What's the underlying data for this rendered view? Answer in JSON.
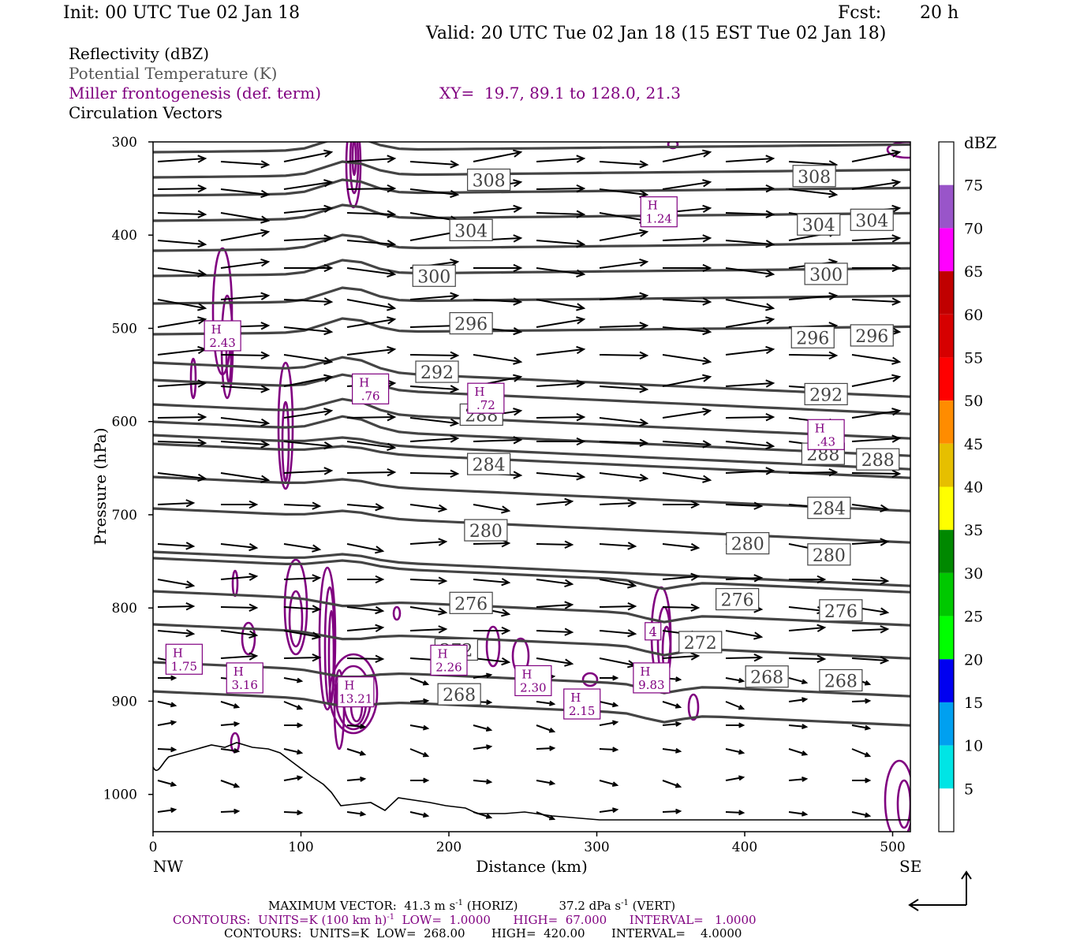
{
  "header": {
    "init": "Init: 00 UTC Tue 02 Jan 18",
    "fcst_label": "Fcst:",
    "fcst_value": "20 h",
    "valid": "Valid: 20 UTC Tue 02 Jan 18 (15 EST Tue 02 Jan 18)"
  },
  "legend": {
    "reflectivity": "Reflectivity (dBZ)",
    "theta": "Potential Temperature (K)",
    "frontogenesis": "Miller frontogenesis (def. term)",
    "xy": "XY=  19.7, 89.1 to 128.0, 21.3",
    "vectors": "Circulation Vectors"
  },
  "colors": {
    "theta": "#444444",
    "frontogenesis": "#800080",
    "terrain": "#000000",
    "vectors": "#000000"
  },
  "chart_data": {
    "type": "line",
    "xlabel": "Distance (km)",
    "ylabel": "Pressure (hPa)",
    "xlim": [
      0,
      512
    ],
    "ylim": [
      1040,
      300
    ],
    "y_scale": "linear",
    "x_ticks": [
      0,
      100,
      200,
      300,
      400,
      500
    ],
    "y_ticks": [
      300,
      400,
      500,
      600,
      700,
      800,
      900,
      1000
    ],
    "x_end_labels": {
      "left": "NW",
      "right": "SE"
    },
    "theta_labels": [
      {
        "label": "308",
        "x": 227,
        "p": 341
      },
      {
        "label": "308",
        "x": 447,
        "p": 337
      },
      {
        "label": "304",
        "x": 215,
        "p": 395
      },
      {
        "label": "304",
        "x": 450,
        "p": 389
      },
      {
        "label": "304",
        "x": 486,
        "p": 384
      },
      {
        "label": "300",
        "x": 190,
        "p": 444
      },
      {
        "label": "300",
        "x": 455,
        "p": 442
      },
      {
        "label": "296",
        "x": 215,
        "p": 495
      },
      {
        "label": "296",
        "x": 446,
        "p": 510
      },
      {
        "label": "296",
        "x": 486,
        "p": 508
      },
      {
        "label": "292",
        "x": 192,
        "p": 547
      },
      {
        "label": "292",
        "x": 455,
        "p": 571
      },
      {
        "label": "288",
        "x": 222,
        "p": 593
      },
      {
        "label": "288",
        "x": 453,
        "p": 635
      },
      {
        "label": "288",
        "x": 490,
        "p": 641
      },
      {
        "label": "284",
        "x": 227,
        "p": 646
      },
      {
        "label": "284",
        "x": 457,
        "p": 693
      },
      {
        "label": "280",
        "x": 225,
        "p": 717
      },
      {
        "label": "280",
        "x": 402,
        "p": 731
      },
      {
        "label": "280",
        "x": 457,
        "p": 743
      },
      {
        "label": "276",
        "x": 215,
        "p": 795
      },
      {
        "label": "276",
        "x": 395,
        "p": 791
      },
      {
        "label": "276",
        "x": 465,
        "p": 803
      },
      {
        "label": "272",
        "x": 205,
        "p": 845
      },
      {
        "label": "272",
        "x": 370,
        "p": 837
      },
      {
        "label": "268",
        "x": 207,
        "p": 893
      },
      {
        "label": "268",
        "x": 415,
        "p": 874
      },
      {
        "label": "268",
        "x": 465,
        "p": 878
      }
    ],
    "frontogenesis_maxima": [
      {
        "label": "H",
        "value": "1.75",
        "x": 21,
        "p": 855
      },
      {
        "label": "H",
        "value": "3.16",
        "x": 62,
        "p": 875
      },
      {
        "label": "H",
        "value": "2.43",
        "x": 47,
        "p": 508
      },
      {
        "label": "H",
        "value": "13.21",
        "x": 137,
        "p": 890
      },
      {
        "label": "H",
        "value": ".76",
        "x": 147,
        "p": 565
      },
      {
        "label": "H",
        "value": ".72",
        "x": 225,
        "p": 575
      },
      {
        "label": "H",
        "value": "2.26",
        "x": 200,
        "p": 856
      },
      {
        "label": "H",
        "value": "2.30",
        "x": 257,
        "p": 878
      },
      {
        "label": "H",
        "value": "2.15",
        "x": 290,
        "p": 903
      },
      {
        "label": "H",
        "value": "1.24",
        "x": 342,
        "p": 375
      },
      {
        "label": "H",
        "value": "9.83",
        "x": 337,
        "p": 875
      },
      {
        "label": "",
        "value": "4",
        "x": 338,
        "p": 825
      },
      {
        "label": "H",
        "value": ".43",
        "x": 455,
        "p": 614
      }
    ],
    "colorbar": {
      "title": "dBZ",
      "labels": [
        "5",
        "10",
        "15",
        "20",
        "25",
        "30",
        "35",
        "40",
        "45",
        "50",
        "55",
        "60",
        "65",
        "70",
        "75"
      ],
      "colors": [
        "#ffffff",
        "#00e5e5",
        "#00a0f0",
        "#0000f0",
        "#00ff00",
        "#00c800",
        "#008800",
        "#ffff00",
        "#e6bf00",
        "#ff8c00",
        "#ff0000",
        "#d60000",
        "#c00000",
        "#ff00ff",
        "#9955c9",
        "#ffffff"
      ]
    }
  },
  "footer": {
    "max_vector": "MAXIMUM VECTOR:  41.3 m s",
    "horiz": " (HORIZ)",
    "vert": "37.2 dPa s",
    "vert_suffix": " (VERT)",
    "sup": "-1",
    "contours1_a": "CONTOURS:  UNITS=K (100 km h)",
    "contours1_b": "  LOW=  1.0000      HIGH=  67.000      INTERVAL=   1.0000",
    "contours2": "CONTOURS:  UNITS=K  LOW=  268.00       HIGH=  420.00       INTERVAL=    4.0000"
  }
}
